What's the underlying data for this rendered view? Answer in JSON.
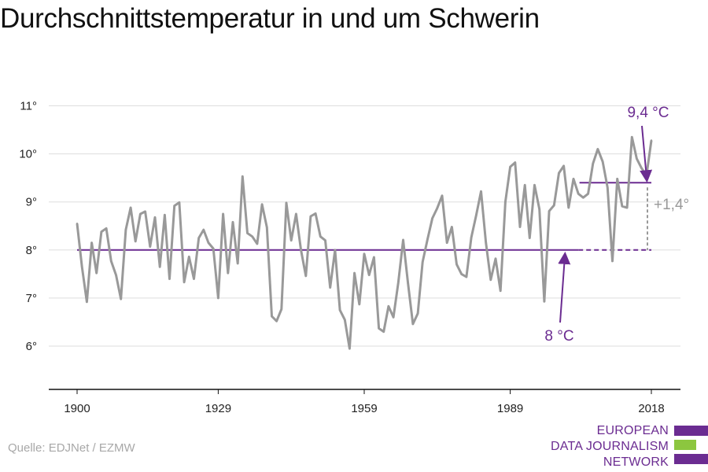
{
  "title": "Durchschnittstemperatur in und um Schwerin",
  "source": "Quelle: EDJNet / EZMW",
  "logo": {
    "line1": "EUROPEAN",
    "line2": "DATA JOURNALISM",
    "line3": "NETWORK"
  },
  "colors": {
    "line": "#999999",
    "accent": "#6b2c91",
    "grid": "#dddddd",
    "axis": "#111111",
    "diff": "#999999",
    "logo_green": "#8cc63f"
  },
  "chart_data": {
    "type": "line",
    "title": "Durchschnittstemperatur in und um Schwerin",
    "xlabel": "",
    "ylabel": "",
    "xlim": [
      1900,
      2018
    ],
    "ylim": [
      5,
      11
    ],
    "grid": true,
    "x_ticks": [
      1900,
      1929,
      1959,
      1989,
      2018
    ],
    "x_tick_labels": [
      "1900",
      "1929",
      "1959",
      "1989",
      "2018"
    ],
    "y_ticks": [
      6,
      7,
      8,
      9,
      10,
      11
    ],
    "y_tick_labels": [
      "6°",
      "7°",
      "8°",
      "9°",
      "10°",
      "11°"
    ],
    "series": [
      {
        "x": [
          1900,
          1901,
          1902,
          1903,
          1904,
          1905,
          1906,
          1907,
          1908,
          1909,
          1910,
          1911,
          1912,
          1913,
          1914,
          1915,
          1916,
          1917,
          1918,
          1919,
          1920,
          1921,
          1922,
          1923,
          1924,
          1925,
          1926,
          1927,
          1928,
          1929,
          1930,
          1931,
          1932,
          1933,
          1934,
          1935,
          1936,
          1937,
          1938,
          1939,
          1940,
          1941,
          1942,
          1943,
          1944,
          1945,
          1946,
          1947,
          1948,
          1949,
          1950,
          1951,
          1952,
          1953,
          1954,
          1955,
          1956,
          1957,
          1958,
          1959,
          1960,
          1961,
          1962,
          1963,
          1964,
          1965,
          1966,
          1967,
          1968,
          1969,
          1970,
          1971,
          1972,
          1973,
          1974,
          1975,
          1976,
          1977,
          1978,
          1979,
          1980,
          1981,
          1982,
          1983,
          1984,
          1985,
          1986,
          1987,
          1988,
          1989,
          1990,
          1991,
          1992,
          1993,
          1994,
          1995,
          1996,
          1997,
          1998,
          1999,
          2000,
          2001,
          2002,
          2003,
          2004,
          2005,
          2006,
          2007,
          2008,
          2009,
          2010,
          2011,
          2012,
          2013,
          2014,
          2015,
          2016,
          2017,
          2018
        ],
        "values": [
          8.55,
          7.65,
          6.92,
          8.15,
          7.52,
          8.38,
          8.45,
          7.77,
          7.48,
          6.98,
          8.42,
          8.88,
          8.18,
          8.75,
          8.8,
          8.07,
          8.68,
          7.65,
          8.73,
          7.4,
          8.92,
          8.99,
          7.33,
          7.86,
          7.4,
          8.25,
          8.42,
          8.15,
          8.03,
          7.0,
          8.75,
          7.52,
          8.58,
          7.72,
          9.53,
          8.35,
          8.28,
          8.13,
          8.95,
          8.47,
          6.62,
          6.52,
          6.77,
          8.98,
          8.2,
          8.75,
          8.0,
          7.46,
          8.7,
          8.76,
          8.28,
          8.2,
          7.22,
          8.0,
          6.75,
          6.55,
          5.95,
          7.52,
          6.87,
          7.92,
          7.48,
          7.85,
          6.37,
          6.3,
          6.83,
          6.6,
          7.32,
          8.21,
          7.3,
          6.46,
          6.68,
          7.75,
          8.22,
          8.66,
          8.87,
          9.13,
          8.15,
          8.48,
          7.7,
          7.5,
          7.44,
          8.26,
          8.72,
          9.22,
          8.15,
          7.38,
          7.82,
          7.15,
          9.0,
          9.73,
          9.82,
          8.48,
          9.35,
          8.25,
          9.35,
          8.85,
          6.93,
          8.81,
          8.93,
          9.6,
          9.75,
          8.88,
          9.48,
          9.17,
          9.09,
          9.17,
          9.8,
          10.1,
          9.84,
          9.3,
          7.77,
          9.48,
          8.91,
          8.88,
          10.35,
          9.9,
          9.7,
          9.55,
          10.28
        ]
      }
    ],
    "reference_lines": [
      {
        "label": "8 °C",
        "value": 8.0,
        "x_start": 1900,
        "x_end": 2018,
        "solid_until": 2003
      },
      {
        "label": "9,4 °C",
        "value": 9.4,
        "x_start": 2000,
        "x_end": 2018
      }
    ],
    "difference_label": "+1,4°"
  }
}
